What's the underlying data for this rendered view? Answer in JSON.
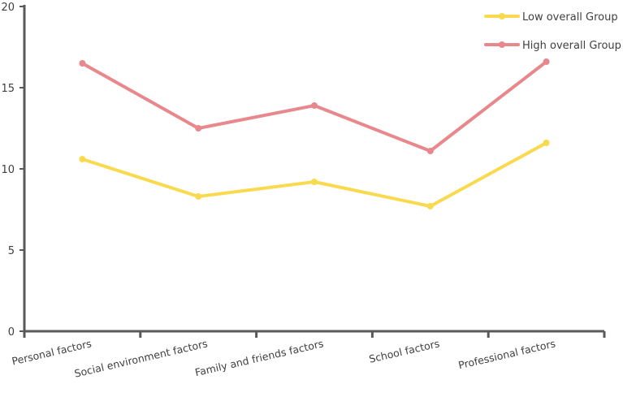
{
  "chart_data": {
    "type": "line",
    "categories": [
      "Personal factors",
      "Social environment factors",
      "Family and friends factors",
      "School factors",
      "Professional factors"
    ],
    "ylim": [
      0,
      20
    ],
    "yticks": [
      0,
      5,
      10,
      15,
      20
    ],
    "grid": false,
    "legend_position": "top-right",
    "series": [
      {
        "name": "Low overall Group",
        "color": "#F9DA4E",
        "values": [
          10.6,
          8.3,
          9.2,
          7.7,
          11.6
        ]
      },
      {
        "name": "High overall Group",
        "color": "#E8878C",
        "values": [
          16.5,
          12.5,
          13.9,
          11.1,
          16.6
        ]
      }
    ]
  }
}
